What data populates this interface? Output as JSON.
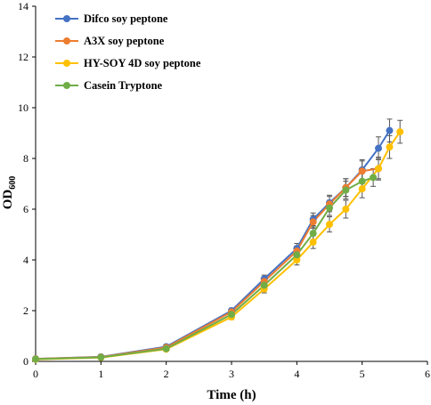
{
  "chart_data": {
    "type": "line",
    "xlabel": "Time (h)",
    "ylabel_main": "OD",
    "ylabel_sub": "600",
    "xlim": [
      0,
      6
    ],
    "ylim": [
      0,
      14
    ],
    "x_ticks": [
      "0",
      "1",
      "2",
      "3",
      "4",
      "5",
      "6"
    ],
    "y_ticks": [
      "0",
      "2",
      "4",
      "6",
      "8",
      "10",
      "12",
      "14"
    ],
    "grid": false,
    "legend_position": "top-left",
    "series": [
      {
        "name": "Difco soy peptone",
        "color": "#4472C4",
        "x": [
          0,
          1,
          2,
          3,
          3.5,
          4,
          4.25,
          4.5,
          4.75,
          5,
          5.25,
          5.42
        ],
        "y": [
          0.1,
          0.18,
          0.58,
          2.0,
          3.25,
          4.45,
          5.6,
          6.25,
          6.85,
          7.55,
          8.4,
          9.1
        ],
        "err": [
          0.02,
          0.03,
          0.05,
          0.1,
          0.15,
          0.2,
          0.25,
          0.3,
          0.35,
          0.4,
          0.45,
          0.45
        ]
      },
      {
        "name": "A3X soy peptone",
        "color": "#ED7D31",
        "x": [
          0,
          1,
          2,
          3,
          3.5,
          4,
          4.25,
          4.5,
          4.75,
          5,
          5.25
        ],
        "y": [
          0.1,
          0.17,
          0.55,
          1.95,
          3.15,
          4.35,
          5.5,
          6.2,
          6.85,
          7.5,
          7.6
        ],
        "err": [
          0.02,
          0.03,
          0.05,
          0.1,
          0.15,
          0.2,
          0.25,
          0.3,
          0.35,
          0.4,
          0.45
        ]
      },
      {
        "name": "HY-SOY 4D soy peptone",
        "color": "#FFC000",
        "x": [
          0,
          1,
          2,
          3,
          3.5,
          4,
          4.25,
          4.5,
          4.75,
          5,
          5.25,
          5.42,
          5.58
        ],
        "y": [
          0.08,
          0.15,
          0.48,
          1.75,
          2.85,
          4.0,
          4.7,
          5.4,
          6.0,
          6.8,
          7.6,
          8.45,
          9.05
        ],
        "err": [
          0.02,
          0.03,
          0.05,
          0.1,
          0.15,
          0.2,
          0.25,
          0.3,
          0.35,
          0.35,
          0.4,
          0.45,
          0.45
        ]
      },
      {
        "name": "Casein Tryptone",
        "color": "#70AD47",
        "x": [
          0,
          1,
          2,
          3,
          3.5,
          4,
          4.25,
          4.5,
          4.75,
          5,
          5.17
        ],
        "y": [
          0.09,
          0.16,
          0.5,
          1.85,
          3.0,
          4.2,
          5.05,
          6.05,
          6.75,
          7.1,
          7.25
        ],
        "err": [
          0.02,
          0.03,
          0.05,
          0.1,
          0.15,
          0.2,
          0.25,
          0.3,
          0.35,
          0.35,
          0.35
        ]
      }
    ]
  }
}
